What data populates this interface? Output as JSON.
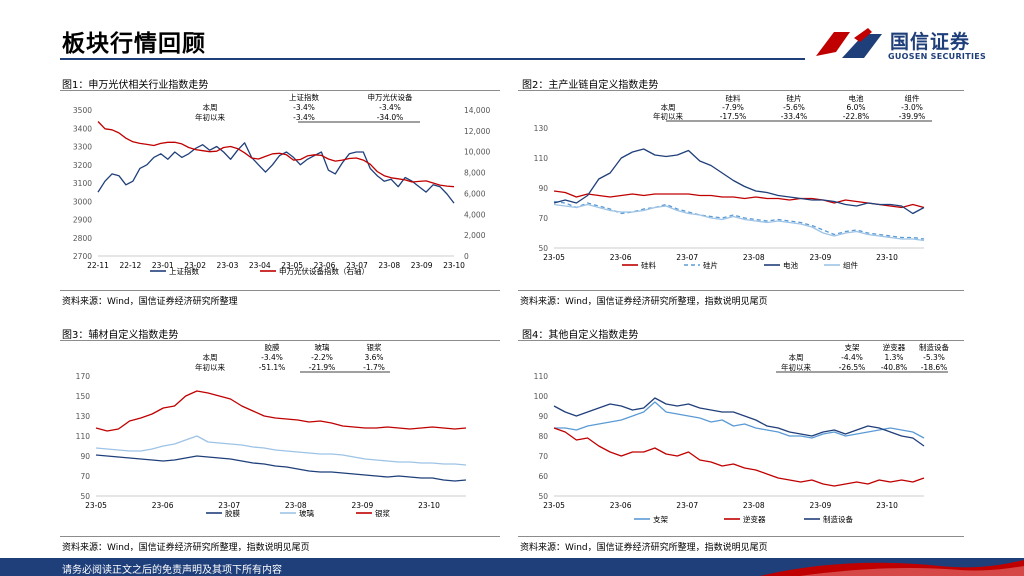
{
  "header": {
    "title": "板块行情回顾"
  },
  "brand": {
    "name_cn": "国信证券",
    "name_en": "GUOSEN SECURITIES",
    "colors": {
      "navy": "#1f3f7a",
      "red": "#c00000"
    }
  },
  "footer": {
    "disclaimer": "请务必阅读正文之后的免责声明及其项下所有内容"
  },
  "panels": [
    {
      "title": "图1：申万光伏相关行业指数走势",
      "source": "资料来源：Wind，国信证券经济研究所整理"
    },
    {
      "title": "图2：主产业链自定义指数走势",
      "source": "资料来源：Wind，国信证券经济研究所整理，指数说明见尾页"
    },
    {
      "title": "图3：辅材自定义指数走势",
      "source": "资料来源：Wind，国信证券经济研究所整理，指数说明见尾页"
    },
    {
      "title": "图4：其他自定义指数走势",
      "source": "资料来源：Wind，国信证券经济研究所整理，指数说明见尾页"
    }
  ],
  "chart_data": [
    {
      "type": "line",
      "title": "图1：申万光伏相关行业指数走势",
      "x_labels": [
        "22-11",
        "22-12",
        "23-01",
        "23-02",
        "23-03",
        "23-04",
        "23-05",
        "23-06",
        "23-07",
        "23-08",
        "23-09",
        "23-10"
      ],
      "left_axis": {
        "ticks": [
          "3500",
          "3400",
          "3300",
          "3200",
          "3100",
          "3000",
          "2900",
          "2800",
          "2700"
        ],
        "ylim": [
          2700,
          3500
        ]
      },
      "right_axis": {
        "ticks": [
          "14,000",
          "12,000",
          "10,000",
          "8,000",
          "6,000",
          "4,000",
          "2,000",
          "0"
        ],
        "ylim": [
          0,
          14000
        ]
      },
      "series": [
        {
          "name": "上证指数",
          "axis": "left",
          "color": "#1f3f7a",
          "values": [
            3050,
            3110,
            3150,
            3140,
            3090,
            3110,
            3180,
            3200,
            3240,
            3260,
            3230,
            3270,
            3240,
            3260,
            3290,
            3310,
            3280,
            3300,
            3270,
            3230,
            3280,
            3320,
            3240,
            3200,
            3160,
            3200,
            3250,
            3270,
            3240,
            3200,
            3230,
            3250,
            3270,
            3170,
            3150,
            3210,
            3260,
            3270,
            3270,
            3180,
            3140,
            3110,
            3120,
            3080,
            3130,
            3110,
            3080,
            3050,
            3090,
            3080,
            3040,
            2990
          ]
        },
        {
          "name": "申万光伏设备指数（右轴）",
          "axis": "right",
          "color": "#c00000",
          "values": [
            12900,
            12200,
            12100,
            11800,
            11300,
            10950,
            10800,
            10700,
            10600,
            10800,
            10900,
            10900,
            10750,
            10400,
            10200,
            10100,
            10000,
            10050,
            10400,
            10500,
            10300,
            9900,
            9400,
            9300,
            9550,
            9800,
            9850,
            9700,
            9200,
            9250,
            9600,
            9700,
            9650,
            9300,
            9100,
            9200,
            9350,
            9400,
            9200,
            8800,
            8100,
            7700,
            7500,
            7400,
            7300,
            7100,
            7150,
            7200,
            7000,
            6800,
            6700,
            6650
          ]
        }
      ],
      "table": {
        "headers": [
          "",
          "上证指数",
          "申万光伏设备"
        ],
        "rows": [
          [
            "本周",
            "-3.4%",
            "-3.4%"
          ],
          [
            "年初以来",
            "-3.4%",
            "-34.0%"
          ]
        ]
      },
      "legend": [
        "上证指数",
        "申万光伏设备指数（右轴）"
      ]
    },
    {
      "type": "line",
      "title": "图2：主产业链自定义指数走势",
      "x_labels": [
        "23-05",
        "23-06",
        "23-07",
        "23-08",
        "23-09",
        "23-10"
      ],
      "y_axis": {
        "ticks": [
          "130",
          "110",
          "90",
          "70",
          "50"
        ],
        "ylim": [
          50,
          130
        ]
      },
      "series": [
        {
          "name": "硅料",
          "color": "#c00000",
          "dash": "none",
          "values": [
            88,
            87,
            84,
            86,
            85,
            84,
            85,
            86,
            85,
            86,
            86,
            86,
            86,
            85,
            85,
            84,
            84,
            83,
            84,
            83,
            83,
            82,
            83,
            83,
            82,
            80,
            82,
            81,
            80,
            79,
            78,
            77,
            79,
            77
          ]
        },
        {
          "name": "硅片",
          "color": "#5b9bd5",
          "dash": "4,3",
          "values": [
            81,
            80,
            77,
            80,
            78,
            76,
            73,
            74,
            76,
            77,
            79,
            76,
            74,
            72,
            71,
            70,
            72,
            70,
            69,
            68,
            69,
            68,
            67,
            65,
            62,
            59,
            61,
            62,
            60,
            59,
            58,
            57,
            57,
            56
          ]
        },
        {
          "name": "电池",
          "color": "#1f3f7a",
          "dash": "none",
          "values": [
            80,
            82,
            80,
            85,
            96,
            100,
            110,
            114,
            116,
            112,
            111,
            112,
            115,
            108,
            105,
            100,
            95,
            91,
            88,
            87,
            85,
            84,
            83,
            82,
            82,
            81,
            79,
            78,
            80,
            79,
            79,
            78,
            73,
            77
          ]
        },
        {
          "name": "组件",
          "color": "#9dc3e6",
          "dash": "none",
          "values": [
            79,
            78,
            77,
            79,
            77,
            75,
            74,
            74,
            75,
            77,
            78,
            75,
            73,
            72,
            70,
            69,
            71,
            69,
            68,
            67,
            68,
            67,
            66,
            64,
            60,
            58,
            60,
            61,
            59,
            58,
            57,
            56,
            56,
            55
          ]
        }
      ],
      "table": {
        "headers": [
          "",
          "硅料",
          "硅片",
          "电池",
          "组件"
        ],
        "rows": [
          [
            "本周",
            "-7.9%",
            "-5.6%",
            "6.0%",
            "-3.0%"
          ],
          [
            "年初以来",
            "-17.5%",
            "-33.4%",
            "-22.8%",
            "-39.9%"
          ]
        ]
      },
      "legend": [
        "硅料",
        "硅片",
        "电池",
        "组件"
      ]
    },
    {
      "type": "line",
      "title": "图3：辅材自定义指数走势",
      "x_labels": [
        "23-05",
        "23-06",
        "23-07",
        "23-08",
        "23-09",
        "23-10"
      ],
      "y_axis": {
        "ticks": [
          "170",
          "150",
          "130",
          "110",
          "90",
          "70",
          "50"
        ],
        "ylim": [
          50,
          170
        ]
      },
      "series": [
        {
          "name": "胶膜",
          "color": "#1f3f7a",
          "values": [
            91,
            90,
            89,
            88,
            87,
            86,
            85,
            86,
            88,
            90,
            89,
            88,
            87,
            85,
            83,
            82,
            80,
            79,
            77,
            75,
            74,
            74,
            73,
            72,
            71,
            70,
            69,
            70,
            69,
            68,
            68,
            66,
            65,
            66
          ]
        },
        {
          "name": "玻璃",
          "color": "#9dc3e6",
          "values": [
            98,
            97,
            96,
            95,
            95,
            97,
            100,
            102,
            106,
            110,
            104,
            103,
            102,
            101,
            99,
            98,
            96,
            95,
            94,
            93,
            92,
            92,
            91,
            89,
            87,
            86,
            85,
            84,
            84,
            83,
            83,
            82,
            82,
            81
          ]
        },
        {
          "name": "银浆",
          "color": "#c00000",
          "values": [
            118,
            115,
            117,
            125,
            128,
            132,
            138,
            140,
            150,
            155,
            153,
            150,
            147,
            140,
            135,
            130,
            128,
            127,
            126,
            124,
            125,
            123,
            120,
            119,
            118,
            118,
            119,
            118,
            117,
            118,
            119,
            118,
            117,
            118
          ]
        }
      ],
      "table": {
        "headers": [
          "",
          "胶膜",
          "玻璃",
          "银浆"
        ],
        "rows": [
          [
            "本周",
            "-3.4%",
            "-2.2%",
            "3.6%"
          ],
          [
            "年初以来",
            "-51.1%",
            "-21.9%",
            "-1.7%"
          ]
        ]
      },
      "legend": [
        "胶膜",
        "玻璃",
        "银浆"
      ]
    },
    {
      "type": "line",
      "title": "图4：其他自定义指数走势",
      "x_labels": [
        "23-05",
        "23-06",
        "23-07",
        "23-08",
        "23-09",
        "23-10"
      ],
      "y_axis": {
        "ticks": [
          "110",
          "100",
          "90",
          "80",
          "70",
          "60",
          "50"
        ],
        "ylim": [
          50,
          110
        ]
      },
      "series": [
        {
          "name": "支架",
          "color": "#5b9bd5",
          "values": [
            84,
            84,
            83,
            85,
            86,
            87,
            88,
            90,
            92,
            97,
            92,
            91,
            90,
            89,
            87,
            88,
            85,
            86,
            84,
            83,
            82,
            80,
            80,
            79,
            81,
            82,
            80,
            81,
            82,
            83,
            84,
            83,
            82,
            79
          ]
        },
        {
          "name": "逆变器",
          "color": "#c00000",
          "values": [
            84,
            82,
            78,
            79,
            75,
            72,
            70,
            72,
            72,
            74,
            71,
            70,
            72,
            68,
            67,
            65,
            66,
            64,
            63,
            61,
            59,
            58,
            57,
            58,
            56,
            55,
            56,
            57,
            56,
            58,
            57,
            58,
            57,
            59
          ]
        },
        {
          "name": "制造设备",
          "color": "#1f3f7a",
          "values": [
            95,
            92,
            90,
            92,
            94,
            96,
            95,
            93,
            94,
            99,
            96,
            95,
            96,
            94,
            93,
            92,
            92,
            90,
            88,
            85,
            84,
            82,
            81,
            80,
            82,
            83,
            81,
            83,
            85,
            84,
            82,
            80,
            79,
            75
          ]
        }
      ],
      "table": {
        "headers": [
          "",
          "支架",
          "逆变器",
          "制造设备"
        ],
        "rows": [
          [
            "本周",
            "-4.4%",
            "1.3%",
            "-5.3%"
          ],
          [
            "年初以来",
            "-26.5%",
            "-40.8%",
            "-18.6%"
          ]
        ]
      },
      "legend": [
        "支架",
        "逆变器",
        "制造设备"
      ]
    }
  ]
}
